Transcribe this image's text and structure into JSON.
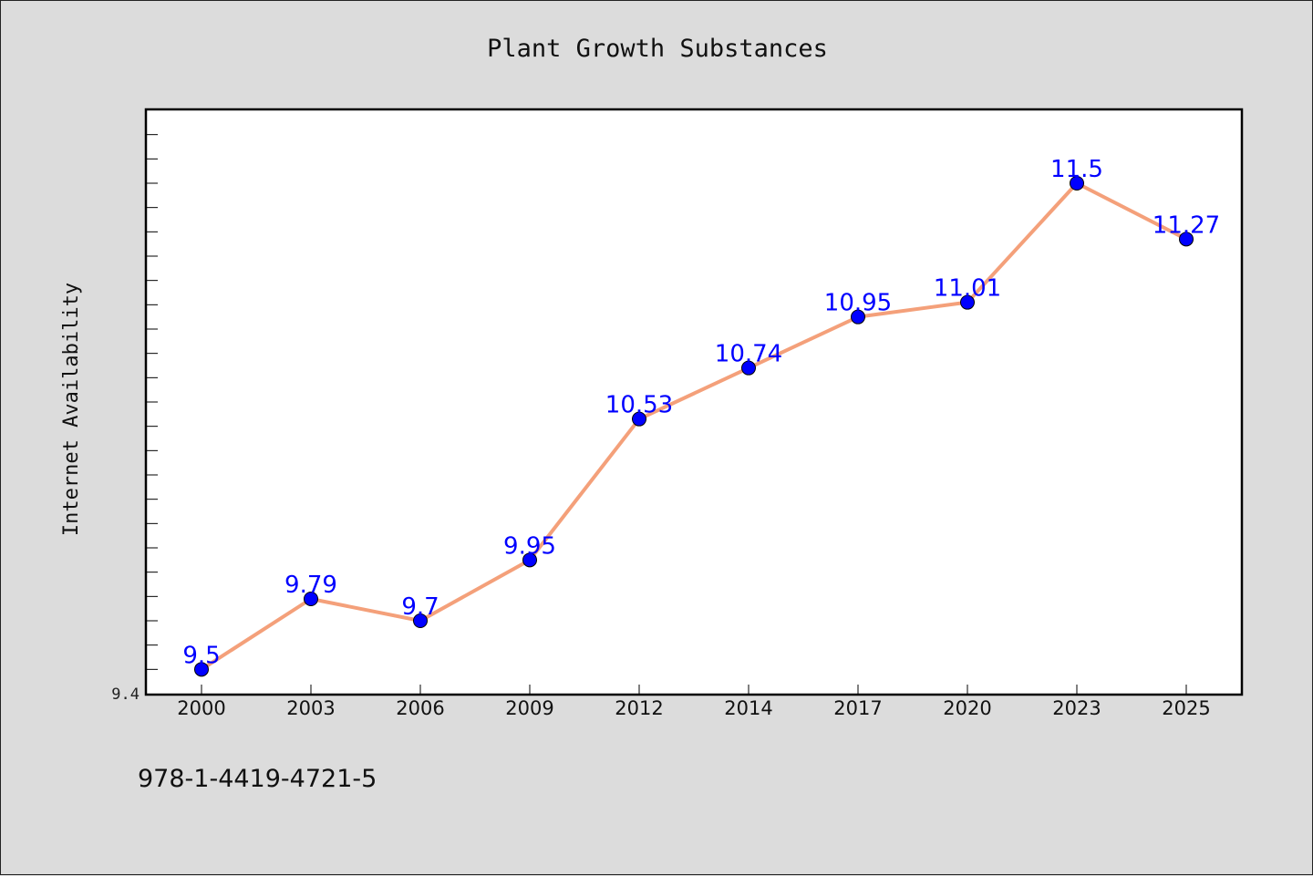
{
  "figure": {
    "footnote": "978-1-4419-4721-5"
  },
  "chart_data": {
    "type": "line",
    "title": "Plant Growth Substances",
    "xlabel": "",
    "ylabel": "Internet Availability",
    "categories": [
      "2000",
      "2003",
      "2006",
      "2009",
      "2012",
      "2014",
      "2017",
      "2020",
      "2023",
      "2025"
    ],
    "series": [
      {
        "values": [
          9.5,
          9.79,
          9.7,
          9.95,
          10.53,
          10.74,
          10.95,
          11.01,
          11.5,
          11.27
        ],
        "line_color": "#f4a07a",
        "marker_color": "#0000ff"
      }
    ],
    "data_labels": [
      "9.5",
      "9.79",
      "9.7",
      "9.95",
      "10.53",
      "10.74",
      "10.95",
      "11.01",
      "11.5",
      "11.27"
    ],
    "ylim": [
      9.4,
      11.8
    ],
    "ytick_labels": [
      {
        "value": 9.4,
        "label": "9.4"
      }
    ],
    "ytick_minor_step": 0.1,
    "grid": false,
    "legend": "none"
  }
}
